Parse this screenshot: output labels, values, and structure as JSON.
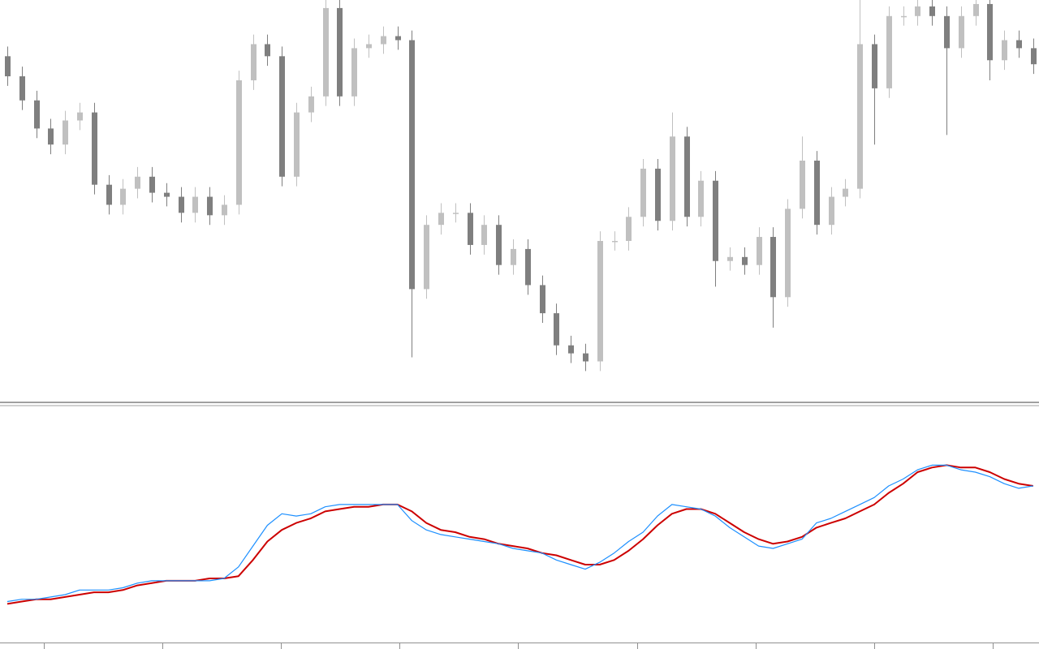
{
  "chart_data": [
    {
      "type": "candlestick",
      "up_color": "#c0c0c0",
      "down_color": "#7f7f7f",
      "ylim": [
        0,
        500
      ],
      "open": [
        430,
        405,
        375,
        340,
        320,
        350,
        360,
        270,
        245,
        265,
        280,
        260,
        255,
        235,
        255,
        232,
        245,
        400,
        445,
        430,
        280,
        360,
        380,
        490,
        380,
        440,
        445,
        455,
        450,
        140,
        220,
        235,
        235,
        195,
        220,
        170,
        190,
        145,
        110,
        70,
        60,
        50,
        200,
        200,
        230,
        290,
        225,
        330,
        230,
        275,
        175,
        180,
        170,
        205,
        130,
        240,
        300,
        220,
        255,
        265,
        445,
        390,
        480,
        480,
        492,
        480,
        440,
        480,
        495,
        425,
        450,
        440
      ],
      "high": [
        442,
        417,
        387,
        352,
        362,
        372,
        372,
        282,
        277,
        292,
        292,
        272,
        267,
        267,
        267,
        257,
        412,
        457,
        457,
        442,
        372,
        392,
        500,
        500,
        452,
        457,
        467,
        467,
        462,
        232,
        247,
        247,
        247,
        232,
        232,
        202,
        202,
        157,
        122,
        82,
        72,
        212,
        212,
        242,
        302,
        302,
        360,
        342,
        287,
        287,
        192,
        192,
        217,
        217,
        252,
        330,
        312,
        267,
        277,
        500,
        457,
        492,
        492,
        500,
        500,
        492,
        492,
        500,
        500,
        462,
        462,
        452
      ],
      "low": [
        393,
        363,
        328,
        308,
        308,
        338,
        258,
        233,
        233,
        253,
        248,
        243,
        223,
        223,
        220,
        220,
        233,
        388,
        418,
        268,
        268,
        348,
        368,
        368,
        368,
        428,
        433,
        438,
        55,
        128,
        208,
        223,
        183,
        183,
        158,
        158,
        133,
        98,
        58,
        48,
        38,
        38,
        188,
        188,
        218,
        213,
        213,
        218,
        218,
        143,
        163,
        158,
        158,
        92,
        118,
        228,
        208,
        208,
        243,
        253,
        320,
        378,
        468,
        468,
        468,
        332,
        428,
        468,
        400,
        413,
        428,
        408
      ],
      "close": [
        405,
        375,
        340,
        320,
        350,
        360,
        270,
        245,
        265,
        280,
        260,
        255,
        235,
        255,
        232,
        245,
        400,
        445,
        430,
        280,
        360,
        380,
        490,
        380,
        440,
        445,
        455,
        450,
        140,
        220,
        235,
        235,
        195,
        220,
        170,
        190,
        145,
        110,
        70,
        60,
        50,
        200,
        200,
        230,
        290,
        225,
        330,
        230,
        275,
        175,
        180,
        170,
        205,
        130,
        240,
        300,
        220,
        255,
        265,
        445,
        390,
        480,
        480,
        492,
        480,
        440,
        480,
        495,
        425,
        450,
        440,
        420
      ]
    },
    {
      "type": "line",
      "ylim": [
        0,
        100
      ],
      "series": [
        {
          "color": "#cc0000",
          "values": [
            16,
            17,
            18,
            18,
            19,
            20,
            21,
            21,
            22,
            24,
            25,
            26,
            26,
            26,
            27,
            27,
            28,
            35,
            43,
            48,
            51,
            53,
            56,
            57,
            58,
            58,
            59,
            59,
            56,
            51,
            48,
            47,
            45,
            44,
            42,
            41,
            40,
            38,
            37,
            35,
            33,
            33,
            35,
            39,
            44,
            50,
            55,
            57,
            57,
            55,
            51,
            47,
            44,
            42,
            43,
            45,
            49,
            51,
            53,
            56,
            59,
            64,
            68,
            73,
            75,
            76,
            75,
            75,
            73,
            70,
            68,
            67
          ]
        },
        {
          "color": "#1e90ff",
          "values": [
            17,
            18,
            18,
            19,
            20,
            22,
            22,
            22,
            23,
            25,
            26,
            26,
            26,
            26,
            26,
            27,
            32,
            41,
            50,
            55,
            54,
            55,
            58,
            59,
            59,
            59,
            59,
            59,
            52,
            48,
            46,
            45,
            44,
            43,
            42,
            40,
            39,
            38,
            35,
            33,
            31,
            34,
            38,
            43,
            47,
            54,
            59,
            58,
            57,
            54,
            49,
            45,
            41,
            40,
            42,
            44,
            51,
            53,
            56,
            59,
            62,
            67,
            70,
            74,
            76,
            76,
            74,
            73,
            71,
            68,
            66,
            67
          ]
        }
      ]
    }
  ]
}
